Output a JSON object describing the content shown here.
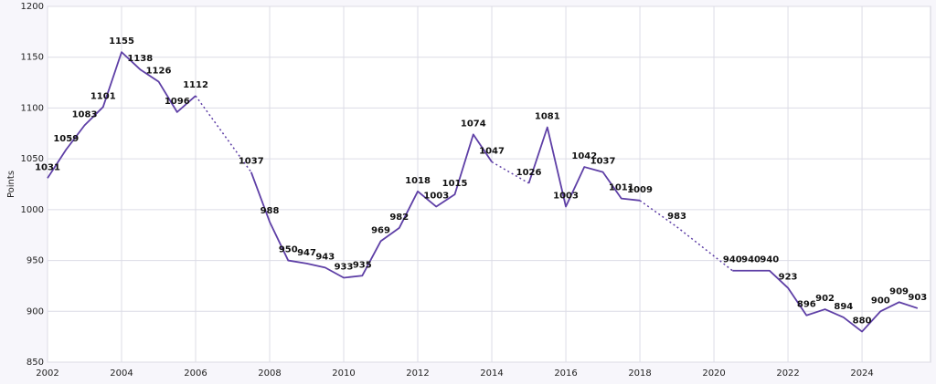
{
  "chart_data": {
    "type": "line",
    "y_label": "Points",
    "x": [
      2002,
      2002.5,
      2003,
      2003.5,
      2004,
      2004.5,
      2005,
      2005.5,
      2006,
      2007.5,
      2008,
      2008.5,
      2009,
      2009.5,
      2010,
      2010.5,
      2011,
      2011.5,
      2012,
      2012.5,
      2013,
      2013.5,
      2014,
      2015,
      2015.5,
      2016,
      2016.5,
      2017,
      2017.5,
      2018,
      2019,
      2020.5,
      2021,
      2021.5,
      2022,
      2022.5,
      2023,
      2023.5,
      2024,
      2024.5,
      2025,
      2025.5
    ],
    "series": [
      {
        "color": "#5e3fa6",
        "values": [
          1031,
          1059,
          1083,
          1101,
          1155,
          1138,
          1126,
          1096,
          1112,
          1037,
          988,
          950,
          947,
          943,
          933,
          935,
          969,
          982,
          1018,
          1003,
          1015,
          1074,
          1047,
          1026,
          1081,
          1003,
          1042,
          1037,
          1011,
          1009,
          983,
          940,
          940,
          940,
          923,
          896,
          902,
          894,
          880,
          900,
          909,
          903
        ]
      }
    ],
    "xlim": [
      2002,
      2025.85
    ],
    "xticks": [
      2002,
      2004,
      2006,
      2008,
      2010,
      2012,
      2014,
      2016,
      2018,
      2020,
      2022,
      2024
    ],
    "ylim": [
      850,
      1200
    ],
    "yticks": [
      850,
      900,
      950,
      1000,
      1050,
      1100,
      1150,
      1200
    ],
    "grid": true
  }
}
